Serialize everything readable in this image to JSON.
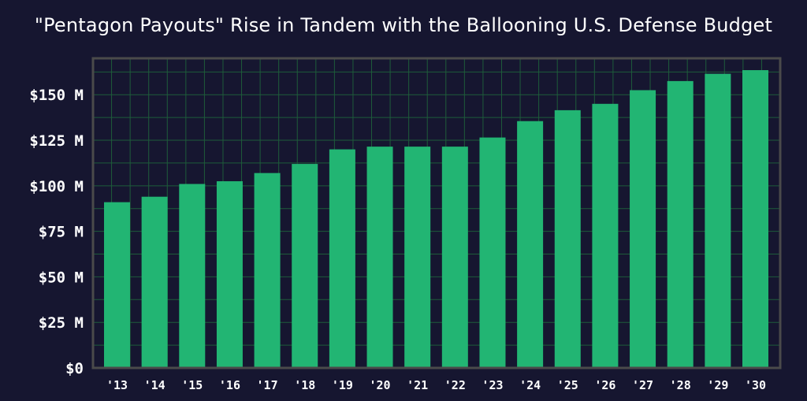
{
  "chart_data": {
    "type": "bar",
    "title": "\"Pentagon Payouts\" Rise in Tandem with the Ballooning U.S. Defense Budget",
    "xlabel": "",
    "ylabel": "",
    "categories": [
      "'13",
      "'14",
      "'15",
      "'16",
      "'17",
      "'18",
      "'19",
      "'20",
      "'21",
      "'22",
      "'23",
      "'24",
      "'25",
      "'26",
      "'27",
      "'28",
      "'29",
      "'30"
    ],
    "values": [
      91,
      94,
      101,
      102.5,
      107,
      112,
      120,
      121.5,
      121.5,
      121.5,
      126.5,
      135.5,
      141.5,
      145,
      152.5,
      157.5,
      161.5,
      163.5
    ],
    "value_unit": "$M",
    "ylim": [
      0,
      170
    ],
    "yticks": [
      0,
      25,
      50,
      75,
      100,
      125,
      150
    ],
    "ytick_labels": [
      "$0",
      "$25 M",
      "$50 M",
      "$75 M",
      "$100 M",
      "$125 M",
      "$150 M"
    ],
    "grid": true,
    "legend": "none",
    "colors": {
      "background": "#161630",
      "bar": "#22b573",
      "grid": "#1e5c3a",
      "frame": "#4a4a4a",
      "text": "#ffffff"
    }
  }
}
